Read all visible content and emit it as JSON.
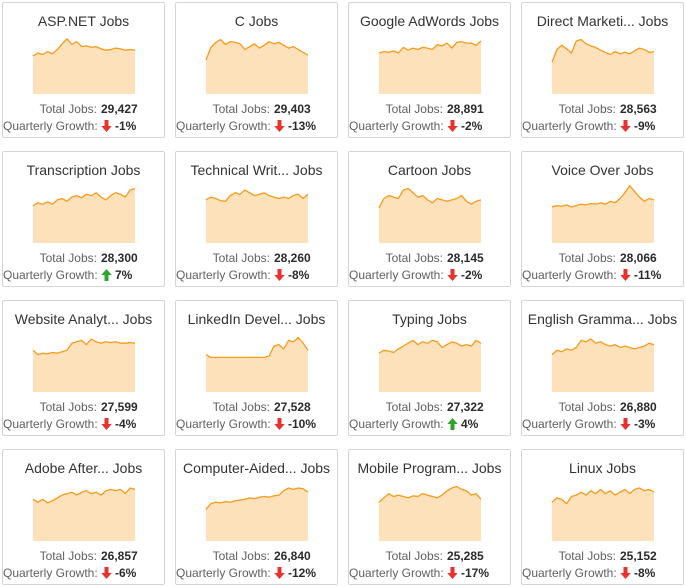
{
  "labels": {
    "total_jobs": "Total Jobs:",
    "quarterly_growth": "Quarterly Growth:"
  },
  "colors": {
    "line": "#f89b1c",
    "fill": "#fde1bb",
    "up": "#2fa52f",
    "down": "#e9322d",
    "label": "#606060",
    "value": "#2b2b2b",
    "title": "#333333",
    "border": "#d5d5d5"
  },
  "chart_data": {
    "type": "area",
    "note": "16 sparkline area mini-charts; values are estimated relative job-posting levels (unitless, 0-100), no axes or gridlines shown",
    "grid": "4x4 cards",
    "series": [
      {
        "title": "ASP.NET Jobs",
        "total_jobs": "29,427",
        "quarterly_growth": "-1%",
        "direction": "down",
        "values": [
          54,
          58,
          56,
          60,
          57,
          63,
          71,
          78,
          70,
          74,
          67,
          68,
          66,
          67,
          64,
          62,
          63,
          65,
          64,
          62,
          63,
          62
        ]
      },
      {
        "title": "C Jobs",
        "total_jobs": "29,403",
        "quarterly_growth": "-13%",
        "direction": "down",
        "values": [
          48,
          66,
          73,
          77,
          70,
          74,
          73,
          71,
          63,
          67,
          71,
          65,
          69,
          74,
          71,
          73,
          69,
          65,
          67,
          63,
          59,
          55
        ]
      },
      {
        "title": "Google AdWords Jobs",
        "total_jobs": "28,891",
        "quarterly_growth": "-2%",
        "direction": "down",
        "values": [
          58,
          60,
          59,
          61,
          58,
          66,
          62,
          65,
          63,
          66,
          65,
          63,
          70,
          68,
          72,
          65,
          73,
          74,
          72,
          72,
          69,
          75
        ]
      },
      {
        "title": "Direct Marketi... Jobs",
        "total_jobs": "28,563",
        "quarterly_growth": "-9%",
        "direction": "down",
        "values": [
          45,
          63,
          69,
          64,
          58,
          75,
          77,
          71,
          68,
          66,
          62,
          59,
          56,
          60,
          57,
          59,
          57,
          61,
          65,
          63,
          59,
          60
        ]
      },
      {
        "title": "Transcription Jobs",
        "total_jobs": "28,300",
        "quarterly_growth": "7%",
        "direction": "up",
        "values": [
          53,
          57,
          55,
          58,
          55,
          61,
          63,
          59,
          65,
          67,
          64,
          69,
          67,
          71,
          65,
          61,
          67,
          71,
          69,
          65,
          75,
          77
        ]
      },
      {
        "title": "Technical Writ... Jobs",
        "total_jobs": "28,260",
        "quarterly_growth": "-8%",
        "direction": "down",
        "values": [
          61,
          65,
          63,
          60,
          59,
          67,
          71,
          69,
          75,
          71,
          67,
          69,
          71,
          67,
          65,
          63,
          65,
          63,
          67,
          69,
          63,
          69
        ]
      },
      {
        "title": "Cartoon Jobs",
        "total_jobs": "28,145",
        "quarterly_growth": "-2%",
        "direction": "down",
        "values": [
          50,
          63,
          67,
          65,
          63,
          75,
          77,
          71,
          65,
          67,
          61,
          57,
          63,
          61,
          59,
          61,
          63,
          67,
          59,
          55,
          59,
          61
        ]
      },
      {
        "title": "Voice Over Jobs",
        "total_jobs": "28,066",
        "quarterly_growth": "-11%",
        "direction": "down",
        "values": [
          51,
          53,
          52,
          54,
          51,
          53,
          55,
          54,
          56,
          55,
          57,
          55,
          59,
          57,
          63,
          71,
          81,
          73,
          65,
          59,
          63,
          61
        ]
      },
      {
        "title": "Website Analyt... Jobs",
        "total_jobs": "27,599",
        "quarterly_growth": "-4%",
        "direction": "down",
        "values": [
          59,
          53,
          55,
          54,
          56,
          55,
          57,
          59,
          69,
          71,
          73,
          67,
          75,
          71,
          69,
          71,
          70,
          71,
          69,
          69,
          70,
          69
        ]
      },
      {
        "title": "LinkedIn Devel... Jobs",
        "total_jobs": "27,528",
        "quarterly_growth": "-10%",
        "direction": "down",
        "values": [
          53,
          49,
          49,
          49,
          49,
          49,
          49,
          49,
          49,
          49,
          49,
          49,
          49,
          51,
          65,
          67,
          61,
          73,
          71,
          77,
          69,
          59
        ]
      },
      {
        "title": "Typing Jobs",
        "total_jobs": "27,322",
        "quarterly_growth": "4%",
        "direction": "up",
        "values": [
          55,
          59,
          58,
          56,
          61,
          65,
          69,
          73,
          67,
          71,
          69,
          73,
          71,
          63,
          67,
          71,
          69,
          65,
          67,
          65,
          73,
          69
        ]
      },
      {
        "title": "English Gramma... Jobs",
        "total_jobs": "26,880",
        "quarterly_growth": "-3%",
        "direction": "down",
        "values": [
          53,
          59,
          57,
          61,
          59,
          63,
          73,
          71,
          75,
          69,
          71,
          67,
          65,
          67,
          63,
          65,
          63,
          61,
          63,
          65,
          69,
          67
        ]
      },
      {
        "title": "Adobe After... Jobs",
        "total_jobs": "26,857",
        "quarterly_growth": "-6%",
        "direction": "down",
        "values": [
          59,
          55,
          59,
          54,
          57,
          61,
          65,
          67,
          69,
          65,
          69,
          71,
          67,
          69,
          65,
          71,
          73,
          71,
          73,
          67,
          75,
          73
        ]
      },
      {
        "title": "Computer-Aided... Jobs",
        "total_jobs": "26,840",
        "quarterly_growth": "-12%",
        "direction": "down",
        "values": [
          45,
          53,
          55,
          54,
          56,
          55,
          57,
          58,
          59,
          61,
          60,
          62,
          63,
          62,
          64,
          65,
          71,
          75,
          73,
          75,
          74,
          69
        ]
      },
      {
        "title": "Mobile Program... Jobs",
        "total_jobs": "25,285",
        "quarterly_growth": "-17%",
        "direction": "down",
        "values": [
          55,
          61,
          67,
          63,
          65,
          63,
          61,
          64,
          63,
          67,
          65,
          63,
          61,
          65,
          71,
          75,
          77,
          73,
          71,
          65,
          67,
          59
        ]
      },
      {
        "title": "Linux Jobs",
        "total_jobs": "25,152",
        "quarterly_growth": "-8%",
        "direction": "down",
        "values": [
          55,
          61,
          59,
          53,
          63,
          65,
          69,
          65,
          71,
          67,
          73,
          67,
          71,
          65,
          69,
          73,
          67,
          73,
          75,
          71,
          73,
          69
        ]
      }
    ]
  }
}
